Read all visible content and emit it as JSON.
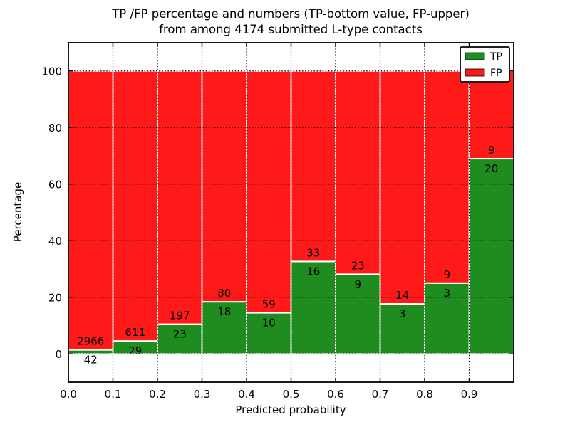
{
  "title": {
    "line1": "TP /FP percentage and numbers (TP-bottom value, FP-upper)",
    "line2": "from among 4174 submitted L-type contacts"
  },
  "axes": {
    "xlabel": "Predicted probability",
    "ylabel": "Percentage",
    "x_tick_labels": [
      "0.0",
      "0.1",
      "0.2",
      "0.3",
      "0.4",
      "0.5",
      "0.6",
      "0.7",
      "0.8",
      "0.9"
    ],
    "y_tick_values": [
      0,
      20,
      40,
      60,
      80,
      100
    ],
    "xlim": [
      0.0,
      1.0
    ],
    "ylim": [
      -10,
      110
    ],
    "grid": "dotted"
  },
  "legend": {
    "items": [
      {
        "label": "TP",
        "color": "#1e8c1e"
      },
      {
        "label": "FP",
        "color": "#ff1a1a"
      }
    ]
  },
  "chart_data": {
    "type": "bar",
    "stacked": true,
    "normalized_total": 100,
    "title": "TP /FP percentage and numbers (TP-bottom value, FP-upper) from among 4174 submitted L-type contacts",
    "xlabel": "Predicted probability",
    "ylabel": "Percentage",
    "bin_starts": [
      0.0,
      0.1,
      0.2,
      0.3,
      0.4,
      0.5,
      0.6,
      0.7,
      0.8,
      0.9
    ],
    "bin_width": 0.1,
    "series": [
      {
        "name": "TP",
        "color": "#1e8c1e",
        "counts": [
          42,
          29,
          23,
          18,
          10,
          16,
          9,
          3,
          3,
          20
        ]
      },
      {
        "name": "FP",
        "color": "#ff1a1a",
        "counts": [
          2966,
          611,
          197,
          80,
          59,
          33,
          23,
          14,
          9,
          9
        ]
      }
    ],
    "tp_percent": [
      1.4,
      4.53,
      10.45,
      18.37,
      14.49,
      32.65,
      28.13,
      17.65,
      25.0,
      68.97
    ],
    "total_contacts": 4174,
    "ylim": [
      -10,
      110
    ],
    "legend_position": "upper right"
  }
}
